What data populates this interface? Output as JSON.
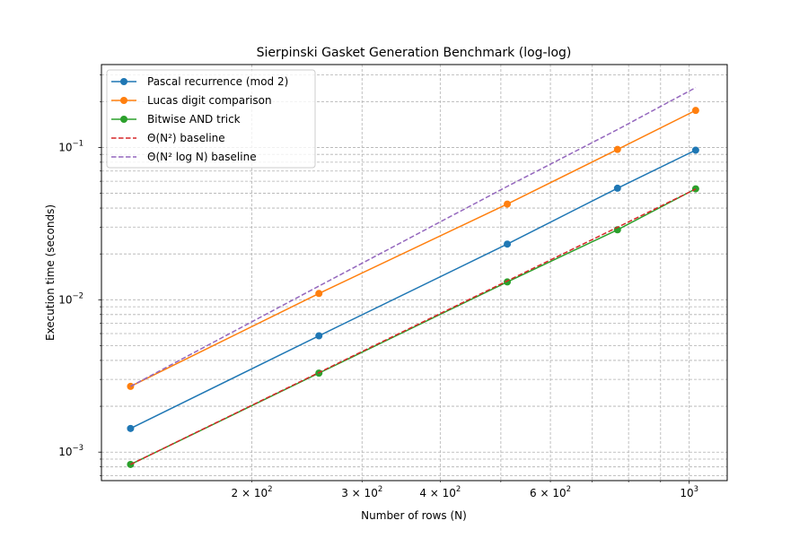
{
  "chart_data": {
    "type": "line",
    "title": "Sierpinski Gasket Generation Benchmark (log-log)",
    "xlabel": "Number of rows (N)",
    "ylabel": "Execution time (seconds)",
    "xscale": "log",
    "yscale": "log",
    "xlim": [
      115,
      1150
    ],
    "ylim": [
      0.00065,
      0.35
    ],
    "grid": true,
    "legend_position": "top-left",
    "x_ticks": [
      {
        "value": 200,
        "base": "2 × 10",
        "exp": "2"
      },
      {
        "value": 300,
        "base": "3 × 10",
        "exp": "2"
      },
      {
        "value": 400,
        "base": "4 × 10",
        "exp": "2"
      },
      {
        "value": 600,
        "base": "6 × 10",
        "exp": "2"
      },
      {
        "value": 1000,
        "base": "10",
        "exp": "3"
      }
    ],
    "y_ticks": [
      {
        "value": 0.001,
        "base": "10",
        "exp": "−3"
      },
      {
        "value": 0.01,
        "base": "10",
        "exp": "−2"
      },
      {
        "value": 0.1,
        "base": "10",
        "exp": "−1"
      }
    ],
    "series": [
      {
        "name": "Pascal recurrence (mod 2)",
        "color": "#1f77b4",
        "style": "solid",
        "marker": true,
        "x": [
          128,
          256,
          512,
          768,
          1024
        ],
        "y": [
          0.00143,
          0.0058,
          0.0232,
          0.054,
          0.096
        ]
      },
      {
        "name": "Lucas digit comparison",
        "color": "#ff7f0e",
        "style": "solid",
        "marker": true,
        "x": [
          128,
          256,
          512,
          768,
          1024
        ],
        "y": [
          0.0027,
          0.011,
          0.0425,
          0.097,
          0.175
        ]
      },
      {
        "name": "Bitwise AND trick",
        "color": "#2ca02c",
        "style": "solid",
        "marker": true,
        "x": [
          128,
          256,
          512,
          768,
          1024
        ],
        "y": [
          0.00083,
          0.0033,
          0.0131,
          0.0288,
          0.0535
        ]
      },
      {
        "name": "Θ(N²) baseline",
        "color": "#d62728",
        "style": "dashed",
        "marker": false,
        "x": [
          128,
          256,
          512,
          768,
          1024
        ],
        "y": [
          0.00083,
          0.00333,
          0.0133,
          0.0299,
          0.0533
        ]
      },
      {
        "name": "Θ(N² log N) baseline",
        "color": "#9467bd",
        "style": "dashed",
        "marker": false,
        "x": [
          128,
          256,
          512,
          768,
          1024
        ],
        "y": [
          0.0027,
          0.0123,
          0.0555,
          0.131,
          0.247
        ]
      }
    ]
  }
}
